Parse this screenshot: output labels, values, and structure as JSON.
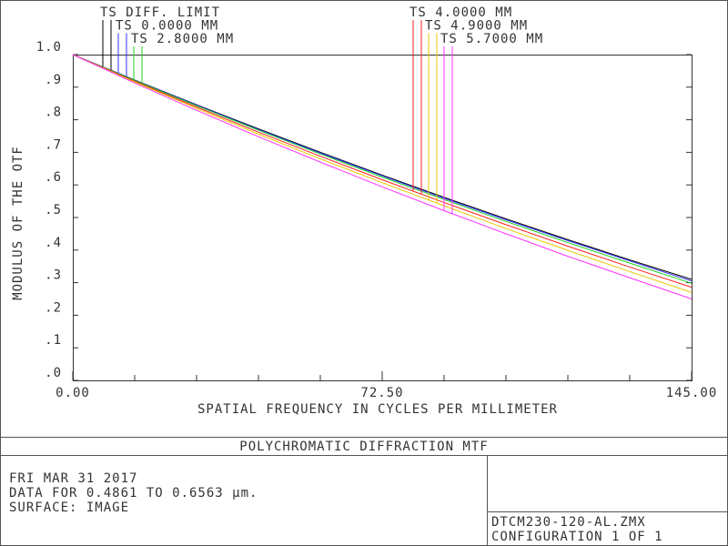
{
  "chart_data": {
    "type": "line",
    "title": "POLYCHROMATIC DIFFRACTION MTF",
    "x_label": "SPATIAL FREQUENCY IN CYCLES PER MILLIMETER",
    "y_label": "MODULUS OF THE OTF",
    "x": [
      0,
      14.5,
      29,
      43.5,
      58,
      72.5,
      87,
      101.5,
      116,
      130.5,
      145
    ],
    "xlim": [
      0,
      145
    ],
    "ylim": [
      0,
      1
    ],
    "xticks": [
      {
        "value": 0,
        "label": "0.00"
      },
      {
        "value": 72.5,
        "label": "72.50"
      },
      {
        "value": 145,
        "label": "145.00"
      }
    ],
    "xminorticks": [
      0,
      14.5,
      29,
      43.5,
      58,
      72.5,
      87,
      101.5,
      116,
      130.5,
      145
    ],
    "yticks": [
      {
        "value": 0,
        "label": ".0"
      },
      {
        "value": 0.1,
        "label": ".1"
      },
      {
        "value": 0.2,
        "label": ".2"
      },
      {
        "value": 0.3,
        "label": ".3"
      },
      {
        "value": 0.4,
        "label": ".4"
      },
      {
        "value": 0.5,
        "label": ".5"
      },
      {
        "value": 0.6,
        "label": ".6"
      },
      {
        "value": 0.7,
        "label": ".7"
      },
      {
        "value": 0.8,
        "label": ".8"
      },
      {
        "value": 0.9,
        "label": ".9"
      },
      {
        "value": 1,
        "label": "1.0"
      }
    ],
    "series": [
      {
        "name": "TS DIFF. LIMIT",
        "color": "#000000",
        "values": [
          1,
          0.922,
          0.846,
          0.772,
          0.7,
          0.63,
          0.562,
          0.496,
          0.432,
          0.37,
          0.31
        ]
      },
      {
        "name": "TS 0.0000 MM",
        "color": "#3030ff",
        "values": [
          1,
          0.921,
          0.845,
          0.77,
          0.698,
          0.628,
          0.559,
          0.493,
          0.429,
          0.367,
          0.305
        ]
      },
      {
        "name": "TS 2.8000 MM",
        "color": "#20d020",
        "values": [
          1,
          0.92,
          0.843,
          0.768,
          0.695,
          0.624,
          0.555,
          0.488,
          0.423,
          0.36,
          0.298
        ]
      },
      {
        "name": "TS 4.0000 MM",
        "color": "#ff2020",
        "values": [
          1,
          0.918,
          0.839,
          0.762,
          0.688,
          0.616,
          0.546,
          0.478,
          0.412,
          0.348,
          0.286
        ]
      },
      {
        "name": "TS 4.9000 MM",
        "color": "#e8c800",
        "values": [
          1,
          0.916,
          0.835,
          0.756,
          0.68,
          0.607,
          0.536,
          0.466,
          0.399,
          0.334,
          0.27
        ]
      },
      {
        "name": "TS 5.7000 MM",
        "color": "#ff30ff",
        "values": [
          1,
          0.913,
          0.829,
          0.748,
          0.67,
          0.594,
          0.521,
          0.45,
          0.381,
          0.315,
          0.25
        ]
      }
    ]
  },
  "info": {
    "date": "FRI MAR 31 2017",
    "data_range": "DATA FOR 0.4861 TO 0.6563 µm.",
    "surface": "SURFACE: IMAGE",
    "file": "DTCM230-120-AL.ZMX",
    "configuration": "CONFIGURATION 1 OF 1"
  }
}
